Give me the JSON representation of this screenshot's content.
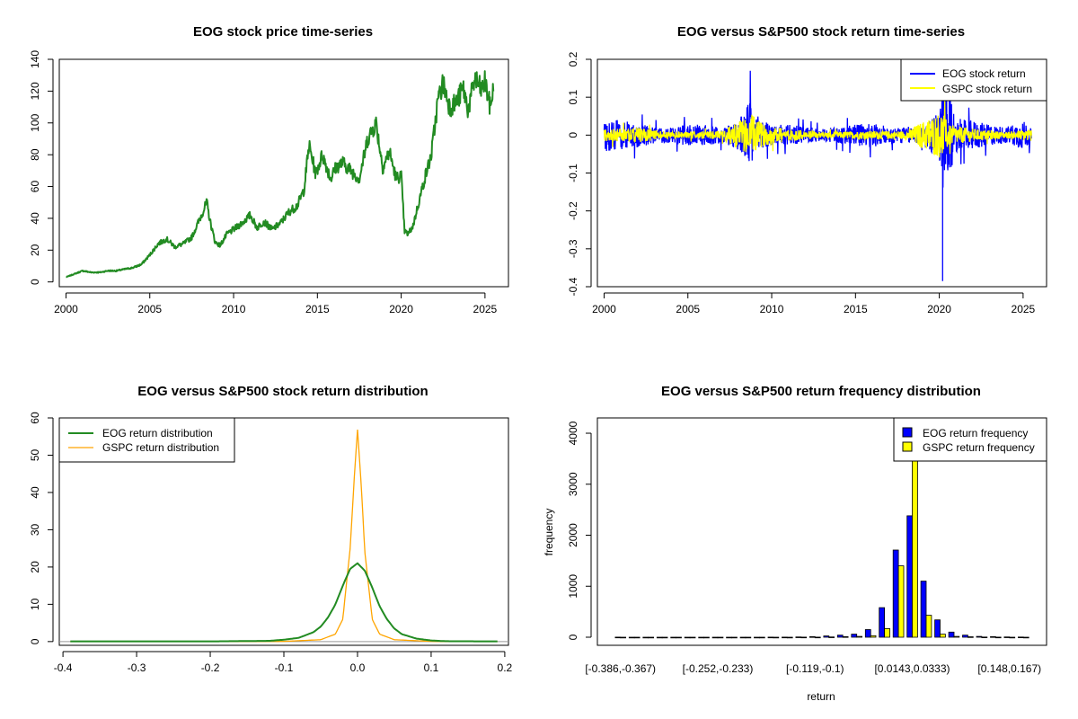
{
  "chart_data": [
    {
      "id": "price",
      "type": "line",
      "title": "EOG stock price time-series",
      "xlabel": "",
      "ylabel": "",
      "xlim": [
        1999.6,
        2026.4
      ],
      "ylim": [
        -3,
        140
      ],
      "xticks": [
        2000,
        2005,
        2010,
        2015,
        2020,
        2025
      ],
      "yticks": [
        0,
        20,
        40,
        60,
        80,
        100,
        120,
        140
      ],
      "series": [
        {
          "name": "EOG stock price",
          "color": "#228B22",
          "x": [
            2000.0,
            2000.5,
            2001.0,
            2001.5,
            2002.0,
            2002.5,
            2003.0,
            2003.5,
            2004.0,
            2004.5,
            2005.0,
            2005.5,
            2006.0,
            2006.5,
            2007.0,
            2007.5,
            2008.0,
            2008.4,
            2008.6,
            2008.9,
            2009.2,
            2009.6,
            2010.0,
            2010.5,
            2011.0,
            2011.4,
            2011.8,
            2012.3,
            2012.8,
            2013.3,
            2013.8,
            2014.2,
            2014.5,
            2014.9,
            2015.3,
            2015.8,
            2016.1,
            2016.5,
            2017.0,
            2017.5,
            2018.0,
            2018.5,
            2018.9,
            2019.3,
            2019.7,
            2020.0,
            2020.2,
            2020.4,
            2020.7,
            2021.0,
            2021.4,
            2021.8,
            2022.2,
            2022.5,
            2022.9,
            2023.3,
            2023.7,
            2024.0,
            2024.4,
            2024.8,
            2025.0,
            2025.3,
            2025.5
          ],
          "values": [
            3,
            5,
            7,
            6,
            6,
            7,
            7,
            8,
            9,
            11,
            17,
            24,
            27,
            22,
            24,
            28,
            40,
            50,
            38,
            25,
            23,
            30,
            33,
            37,
            42,
            34,
            38,
            33,
            37,
            44,
            48,
            58,
            86,
            68,
            80,
            65,
            72,
            75,
            70,
            65,
            90,
            100,
            72,
            82,
            65,
            67,
            32,
            30,
            35,
            48,
            65,
            80,
            115,
            125,
            110,
            113,
            122,
            108,
            128,
            120,
            126,
            110,
            121
          ]
        }
      ]
    },
    {
      "id": "returns",
      "type": "line",
      "title": "EOG versus S&P500 stock return time-series",
      "xlabel": "",
      "ylabel": "",
      "xlim": [
        1999.6,
        2026.4
      ],
      "ylim": [
        -0.4,
        0.2
      ],
      "xticks": [
        2000,
        2005,
        2010,
        2015,
        2020,
        2025
      ],
      "yticks": [
        -0.4,
        -0.3,
        -0.2,
        -0.1,
        0.0,
        0.1,
        0.2
      ],
      "legend_position": "top-right",
      "series": [
        {
          "name": "EOG stock return",
          "color": "#0000FF",
          "x": [
            2000,
            2001,
            2002,
            2003,
            2004,
            2005,
            2006,
            2007,
            2008,
            2008.8,
            2009,
            2010,
            2011,
            2012,
            2013,
            2014,
            2015,
            2016,
            2017,
            2018,
            2019,
            2020,
            2020.2,
            2021,
            2022,
            2023,
            2024,
            2025,
            2025.5
          ],
          "amplitude": [
            0.08,
            0.07,
            0.06,
            0.04,
            0.04,
            0.05,
            0.05,
            0.04,
            0.07,
            0.18,
            0.1,
            0.05,
            0.05,
            0.04,
            0.03,
            0.04,
            0.05,
            0.06,
            0.04,
            0.04,
            0.04,
            0.12,
            0.38,
            0.08,
            0.07,
            0.05,
            0.04,
            0.07,
            0.04
          ]
        },
        {
          "name": "GSPC stock return",
          "color": "#FFFF00",
          "x": [
            2000,
            2002,
            2004,
            2007,
            2008.8,
            2009.5,
            2011,
            2013,
            2016,
            2018,
            2020.2,
            2020.6,
            2022,
            2024,
            2025.3
          ],
          "amplitude": [
            0.03,
            0.035,
            0.015,
            0.02,
            0.1,
            0.05,
            0.03,
            0.015,
            0.02,
            0.02,
            0.12,
            0.05,
            0.03,
            0.015,
            0.03
          ]
        }
      ]
    },
    {
      "id": "density",
      "type": "line",
      "title": "EOG versus S&P500 stock return distribution",
      "xlabel": "",
      "ylabel": "",
      "xlim": [
        -0.405,
        0.205
      ],
      "ylim": [
        -1,
        60
      ],
      "xticks": [
        -0.4,
        -0.3,
        -0.2,
        -0.1,
        0.0,
        0.1,
        0.2
      ],
      "xtick_labels": [
        "-0.4",
        "-0.3",
        "-0.2",
        "-0.1",
        "0.0",
        "0.1",
        "0.2"
      ],
      "yticks": [
        0,
        10,
        20,
        30,
        40,
        50,
        60
      ],
      "legend_position": "top-left",
      "series": [
        {
          "name": "EOG return distribution",
          "color": "#228B22",
          "x": [
            -0.39,
            -0.2,
            -0.12,
            -0.1,
            -0.08,
            -0.06,
            -0.05,
            -0.04,
            -0.03,
            -0.02,
            -0.01,
            0.0,
            0.01,
            0.02,
            0.03,
            0.04,
            0.05,
            0.06,
            0.08,
            0.1,
            0.12,
            0.19
          ],
          "values": [
            0.05,
            0.05,
            0.2,
            0.5,
            1.0,
            2.5,
            4.0,
            6.5,
            10.0,
            15.0,
            19.5,
            21.0,
            19.0,
            14.5,
            9.5,
            6.0,
            3.5,
            2.0,
            0.8,
            0.3,
            0.1,
            0.05
          ]
        },
        {
          "name": "GSPC return distribution",
          "color": "#FFA500",
          "x": [
            -0.39,
            -0.1,
            -0.05,
            -0.03,
            -0.02,
            -0.01,
            -0.005,
            0.0,
            0.005,
            0.01,
            0.02,
            0.03,
            0.05,
            0.1,
            0.19
          ],
          "values": [
            0.0,
            0.05,
            0.5,
            2.0,
            6.0,
            25.0,
            42.0,
            57.0,
            42.0,
            24.0,
            6.0,
            2.0,
            0.5,
            0.05,
            0.0
          ]
        }
      ]
    },
    {
      "id": "hist",
      "type": "bar",
      "title": "EOG versus S&P500 return frequency distribution",
      "xlabel": "return",
      "ylabel": "frequency",
      "ylim": [
        0,
        4300
      ],
      "yticks": [
        0,
        1000,
        2000,
        3000,
        4000
      ],
      "legend_position": "top-right",
      "tick_labels": [
        "[-0.386,-0.367)",
        "[-0.252,-0.233)",
        "[-0.119,-0.1)",
        "[0.0143,0.0333)",
        "[0.148,0.167)"
      ],
      "categories_count": 30,
      "series": [
        {
          "name": "EOG return frequency",
          "color": "#0000FF",
          "values": [
            1,
            0,
            0,
            0,
            0,
            0,
            0,
            0,
            0,
            0,
            0,
            1,
            2,
            5,
            10,
            25,
            40,
            60,
            150,
            580,
            1710,
            2380,
            1100,
            340,
            100,
            40,
            15,
            10,
            5,
            3
          ]
        },
        {
          "name": "GSPC return frequency",
          "color": "#FFFF00",
          "values": [
            0,
            0,
            0,
            0,
            0,
            0,
            0,
            0,
            0,
            0,
            0,
            0,
            0,
            1,
            2,
            5,
            10,
            15,
            30,
            170,
            1400,
            4200,
            430,
            60,
            15,
            8,
            3,
            1,
            0,
            0
          ]
        }
      ]
    }
  ]
}
